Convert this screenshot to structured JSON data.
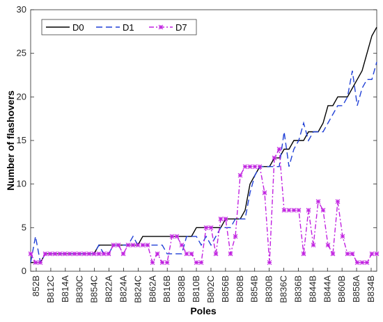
{
  "chart_data": {
    "type": "line",
    "xlabel": "Poles",
    "ylabel": "Number of flashovers",
    "ylim": [
      0,
      30
    ],
    "yticks": [
      0,
      5,
      10,
      15,
      20,
      25,
      30
    ],
    "grid": false,
    "legend_position": "top-left",
    "x_tick_labels": [
      "852B",
      "B812C",
      "B814A",
      "B830C",
      "B854C",
      "B822A",
      "B824A",
      "B824C",
      "B862A",
      "B816B",
      "B838B",
      "B810B",
      "B802C",
      "B856B",
      "B808B",
      "B854B",
      "B830B",
      "B836C",
      "B836B",
      "B844B",
      "B844A",
      "B860B",
      "B858A",
      "B834B"
    ],
    "x_range": [
      1,
      72
    ],
    "series": [
      {
        "name": "D0",
        "color": "#000000",
        "style": "solid",
        "x": [
          1,
          3,
          4,
          14,
          15,
          23,
          24,
          34,
          35,
          40,
          41,
          44,
          45,
          46,
          47,
          48,
          49,
          50,
          51,
          52,
          53,
          54,
          55,
          56,
          57,
          58,
          59,
          60,
          61,
          62,
          63,
          64,
          65,
          66,
          67,
          68,
          69,
          70,
          71,
          72
        ],
        "y": [
          1,
          1,
          2,
          2,
          3,
          3,
          4,
          4,
          5,
          5,
          6,
          6,
          7,
          10,
          11,
          12,
          12,
          12,
          13,
          13,
          14,
          14,
          15,
          15,
          15,
          16,
          16,
          16,
          17,
          19,
          19,
          20,
          20,
          20,
          21,
          22,
          23,
          25,
          27,
          28
        ]
      },
      {
        "name": "D1",
        "color": "#1f3fd6",
        "style": "dashed",
        "x": [
          1,
          2,
          3,
          4,
          5,
          6,
          7,
          8,
          9,
          10,
          11,
          12,
          13,
          14,
          15,
          16,
          17,
          18,
          19,
          20,
          21,
          22,
          23,
          24,
          25,
          26,
          27,
          28,
          29,
          30,
          31,
          32,
          33,
          34,
          35,
          36,
          37,
          38,
          39,
          40,
          41,
          42,
          43,
          44,
          45,
          46,
          47,
          48,
          49,
          50,
          51,
          52,
          53,
          54,
          55,
          56,
          57,
          58,
          59,
          60,
          61,
          62,
          63,
          64,
          65,
          66,
          67,
          68,
          69,
          70,
          71,
          72
        ],
        "y": [
          1,
          4,
          1,
          2,
          2,
          2,
          2,
          2,
          2,
          2,
          2,
          2,
          2,
          2,
          3,
          2,
          2,
          3,
          3,
          3,
          3,
          4,
          3,
          3,
          3,
          3,
          3,
          3,
          2,
          2,
          2,
          2,
          4,
          4,
          4,
          3,
          4,
          3,
          4,
          5,
          5,
          5,
          6,
          6,
          6,
          9,
          11,
          12,
          12,
          12,
          12,
          12,
          16,
          12,
          14,
          15,
          17,
          15,
          16,
          16,
          16,
          17,
          18,
          19,
          19,
          20,
          23,
          19,
          21,
          22,
          22,
          24
        ]
      },
      {
        "name": "D7",
        "color": "#c020e0",
        "style": "dashdot",
        "x": [
          1,
          2,
          3,
          4,
          5,
          6,
          7,
          8,
          9,
          10,
          11,
          12,
          13,
          14,
          15,
          16,
          17,
          18,
          19,
          20,
          21,
          22,
          23,
          24,
          25,
          26,
          27,
          28,
          29,
          30,
          31,
          32,
          33,
          34,
          35,
          36,
          37,
          38,
          39,
          40,
          41,
          42,
          43,
          44,
          45,
          46,
          47,
          48,
          49,
          50,
          51,
          52,
          53,
          54,
          55,
          56,
          57,
          58,
          59,
          60,
          61,
          62,
          63,
          64,
          65,
          66,
          67,
          68,
          69,
          70,
          71,
          72
        ],
        "y": [
          2,
          1,
          1,
          2,
          2,
          2,
          2,
          2,
          2,
          2,
          2,
          2,
          2,
          2,
          2,
          2,
          2,
          3,
          3,
          2,
          3,
          3,
          3,
          3,
          3,
          1,
          2,
          1,
          1,
          4,
          4,
          3,
          2,
          2,
          1,
          1,
          5,
          5,
          2,
          6,
          6,
          2,
          4,
          11,
          12,
          12,
          12,
          12,
          9,
          1,
          13,
          14,
          7,
          7,
          7,
          7,
          2,
          7,
          3,
          8,
          7,
          3,
          2,
          8,
          4,
          2,
          2,
          1,
          1,
          1,
          2,
          2
        ]
      }
    ]
  }
}
